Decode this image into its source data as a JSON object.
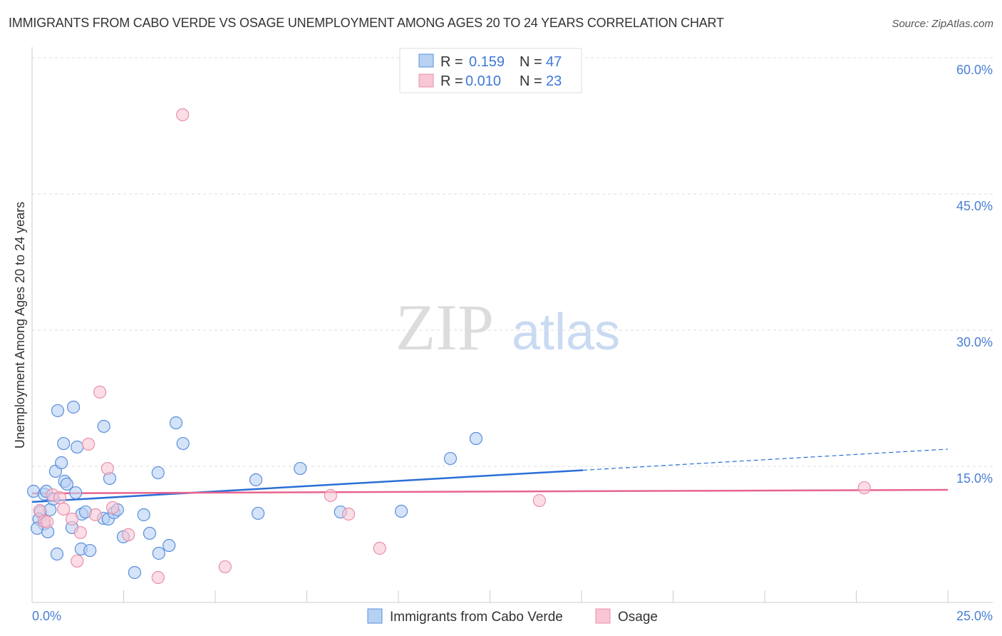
{
  "title": "IMMIGRANTS FROM CABO VERDE VS OSAGE UNEMPLOYMENT AMONG AGES 20 TO 24 YEARS CORRELATION CHART",
  "source": "Source: ZipAtlas.com",
  "watermark": "ZIPatlas",
  "colors": {
    "blue_fill": "#b7d1f3",
    "blue_stroke": "#5a8fdc",
    "blue_line": "#2a6fd6",
    "pink_fill": "#f8c6d4",
    "pink_stroke": "#e990ab",
    "pink_line": "#e8648f"
  },
  "legend": {
    "r_label": "R =",
    "n_label": "N =",
    "series": [
      {
        "r": "0.159",
        "n": "47"
      },
      {
        "r": "0.010",
        "n": "23"
      }
    ]
  },
  "chart_data": {
    "type": "scatter",
    "title": "IMMIGRANTS FROM CABO VERDE VS OSAGE UNEMPLOYMENT AMONG AGES 20 TO 24 YEARS CORRELATION CHART",
    "xlabel": "",
    "ylabel": "Unemployment Among Ages 20 to 24 years",
    "xlim": [
      0,
      25
    ],
    "ylim": [
      0,
      62.5
    ],
    "x_tick_labels": [
      "0.0%",
      "25.0%"
    ],
    "y_ticks": [
      15,
      30,
      45,
      60
    ],
    "y_tick_labels": [
      "15.0%",
      "30.0%",
      "45.0%",
      "60.0%"
    ],
    "legend_placement": "top-center",
    "series": [
      {
        "name": "Immigrants from Cabo Verde",
        "trend": {
          "x0": 0,
          "y0": 11.07,
          "x_solid_end": 15.04,
          "x1": 25,
          "y1": 16.89
        },
        "points": [
          [
            0.04,
            12.25
          ],
          [
            0.33,
            11.94
          ],
          [
            0.39,
            12.25
          ],
          [
            0.23,
            9.97
          ],
          [
            0.49,
            10.21
          ],
          [
            0.58,
            11.39
          ],
          [
            0.19,
            9.19
          ],
          [
            0.33,
            8.64
          ],
          [
            0.14,
            8.17
          ],
          [
            0.43,
            7.78
          ],
          [
            0.68,
            5.34
          ],
          [
            0.7,
            21.13
          ],
          [
            1.13,
            21.52
          ],
          [
            0.64,
            14.45
          ],
          [
            0.8,
            15.39
          ],
          [
            0.86,
            17.51
          ],
          [
            0.89,
            13.35
          ],
          [
            0.95,
            13.04
          ],
          [
            1.23,
            17.12
          ],
          [
            1.19,
            12.09
          ],
          [
            1.09,
            8.25
          ],
          [
            1.36,
            9.74
          ],
          [
            1.46,
            9.97
          ],
          [
            1.34,
            5.89
          ],
          [
            1.58,
            5.73
          ],
          [
            1.96,
            19.4
          ],
          [
            2.12,
            13.67
          ],
          [
            1.95,
            9.27
          ],
          [
            2.08,
            9.19
          ],
          [
            2.24,
            9.9
          ],
          [
            2.33,
            10.21
          ],
          [
            2.49,
            7.23
          ],
          [
            2.8,
            3.3
          ],
          [
            3.05,
            9.66
          ],
          [
            3.21,
            7.62
          ],
          [
            3.44,
            14.29
          ],
          [
            3.46,
            5.42
          ],
          [
            3.74,
            6.28
          ],
          [
            3.93,
            19.79
          ],
          [
            4.12,
            17.51
          ],
          [
            6.11,
            13.51
          ],
          [
            6.17,
            9.82
          ],
          [
            7.32,
            14.76
          ],
          [
            8.42,
            9.97
          ],
          [
            10.08,
            10.05
          ],
          [
            11.42,
            15.86
          ],
          [
            12.12,
            18.06
          ]
        ]
      },
      {
        "name": "Osage",
        "trend": {
          "x0": 0,
          "y0": 12.02,
          "x_solid_end": 25,
          "x1": 25,
          "y1": 12.41
        },
        "points": [
          [
            4.11,
            53.72
          ],
          [
            1.85,
            23.17
          ],
          [
            1.54,
            17.44
          ],
          [
            2.06,
            14.76
          ],
          [
            0.56,
            11.86
          ],
          [
            0.76,
            11.54
          ],
          [
            0.21,
            10.13
          ],
          [
            0.86,
            10.29
          ],
          [
            0.33,
            8.95
          ],
          [
            1.09,
            9.19
          ],
          [
            1.32,
            7.7
          ],
          [
            1.23,
            4.56
          ],
          [
            1.73,
            9.66
          ],
          [
            2.2,
            10.45
          ],
          [
            2.63,
            7.46
          ],
          [
            3.44,
            2.75
          ],
          [
            5.27,
            3.93
          ],
          [
            8.15,
            11.78
          ],
          [
            8.64,
            9.74
          ],
          [
            9.49,
            5.97
          ],
          [
            13.85,
            11.23
          ],
          [
            22.72,
            12.64
          ],
          [
            0.41,
            8.87
          ]
        ]
      }
    ]
  }
}
